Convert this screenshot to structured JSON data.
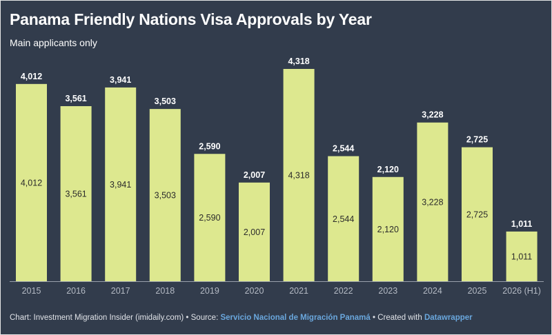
{
  "header": {
    "title": "Panama Friendly Nations Visa Approvals by Year",
    "subtitle": "Main applicants only"
  },
  "footer": {
    "prefix": "Chart: Investment Migration Insider (imidaily.com) • Source: ",
    "source_link": "Servicio Nacional de Migración Panamá",
    "middle": " • Created with ",
    "tool_link": "Datawrapper"
  },
  "colors": {
    "background": "#323c4c",
    "bar": "#dde88f",
    "label_outside": "#ffffff",
    "label_inside": "#2b2b2b",
    "tick": "#b4bac4",
    "baseline": "#9aa1ac",
    "link": "#6aa7dd"
  },
  "chart_data": {
    "type": "bar",
    "categories": [
      "2015",
      "2016",
      "2017",
      "2018",
      "2019",
      "2020",
      "2021",
      "2022",
      "2023",
      "2024",
      "2025",
      "2026 (H1)"
    ],
    "values": [
      4012,
      3561,
      3941,
      3503,
      2590,
      2007,
      4318,
      2544,
      2120,
      3228,
      2725,
      1011
    ],
    "value_labels": [
      "4,012",
      "3,561",
      "3,941",
      "3,503",
      "2,590",
      "2,007",
      "4,318",
      "2,544",
      "2,120",
      "3,228",
      "2,725",
      "1,011"
    ],
    "title": "Panama Friendly Nations Visa Approvals by Year",
    "subtitle": "Main applicants only",
    "ylim": [
      0,
      4318
    ],
    "grid": false,
    "legend": "none"
  }
}
